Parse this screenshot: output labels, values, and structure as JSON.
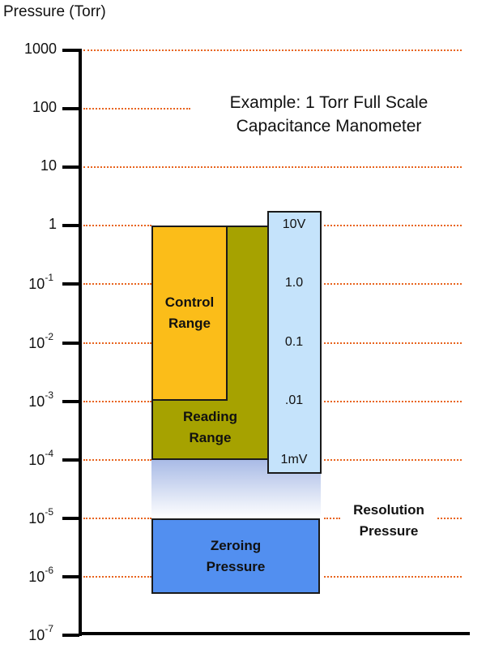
{
  "y_axis_title": "Pressure (Torr)",
  "caption": {
    "line1": "Example: 1 Torr Full Scale",
    "line2": "Capacitance Manometer"
  },
  "ticks": [
    {
      "base": "1000",
      "exp": ""
    },
    {
      "base": "100",
      "exp": ""
    },
    {
      "base": "10",
      "exp": ""
    },
    {
      "base": "1",
      "exp": ""
    },
    {
      "base": "10",
      "exp": "-1"
    },
    {
      "base": "10",
      "exp": "-2"
    },
    {
      "base": "10",
      "exp": "-3"
    },
    {
      "base": "10",
      "exp": "-4"
    },
    {
      "base": "10",
      "exp": "-5"
    },
    {
      "base": "10",
      "exp": "-6"
    },
    {
      "base": "10",
      "exp": "-7"
    }
  ],
  "boxes": {
    "control": {
      "line1": "Control",
      "line2": "Range",
      "color": "#fbbd19"
    },
    "reading": {
      "line1": "Reading",
      "line2": "Range",
      "color": "#a6a200"
    },
    "output": {
      "color": "#c5e3fb",
      "labels": [
        "10V",
        "1.0",
        "0.1",
        ".01",
        "1mV"
      ]
    },
    "zeroing": {
      "line1": "Zeroing",
      "line2": "Pressure",
      "color": "#528ff0"
    }
  },
  "resolution": {
    "line1": "Resolution",
    "line2": "Pressure"
  },
  "colors": {
    "grid": "#e8641e",
    "fade": "#a9bbe6"
  }
}
